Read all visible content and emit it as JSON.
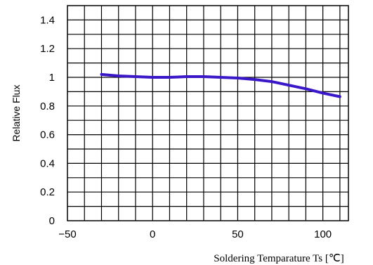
{
  "chart_data": {
    "type": "line",
    "title": "",
    "xlabel": "Soldering Temparature Ts [℃]",
    "ylabel": "Relative Flux",
    "xlim": [
      -50,
      115
    ],
    "ylim": [
      0,
      1.5
    ],
    "x_ticks": [
      -50,
      0,
      50,
      100
    ],
    "x_tick_labels": [
      "−50",
      "0",
      "50",
      "100"
    ],
    "y_ticks": [
      0,
      0.2,
      0.4,
      0.6,
      0.8,
      1,
      1.2,
      1.4
    ],
    "y_tick_labels": [
      "0",
      "0.2",
      "0.4",
      "0.6",
      "0.8",
      "1",
      "1.2",
      "1.4"
    ],
    "grid": true,
    "series_color": "#3a17c8",
    "series": [
      {
        "x": [
          -30,
          -20,
          -10,
          0,
          10,
          20,
          30,
          40,
          50,
          60,
          70,
          80,
          90,
          100,
          110
        ],
        "values": [
          1.02,
          1.01,
          1.005,
          1.0,
          1.0,
          1.005,
          1.005,
          1.0,
          0.995,
          0.985,
          0.97,
          0.945,
          0.92,
          0.89,
          0.865
        ]
      }
    ]
  }
}
